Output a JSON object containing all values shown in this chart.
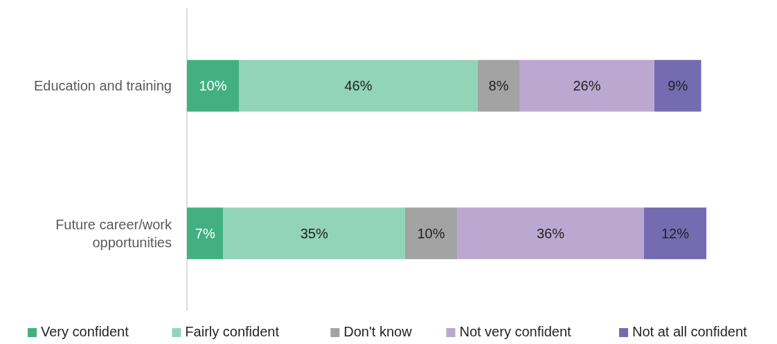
{
  "chart_data": {
    "type": "bar",
    "orientation": "horizontal",
    "stacked": true,
    "legend": "bottom",
    "categories": [
      "Education and training",
      "Future career/work opportunities"
    ],
    "series": [
      {
        "name": "Very confident",
        "color": "#43b081",
        "values": [
          10,
          7
        ],
        "value_labels": [
          "10%",
          "7%"
        ]
      },
      {
        "name": "Fairly confident",
        "color": "#92d4b8",
        "values": [
          46,
          35
        ],
        "value_labels": [
          "46%",
          "35%"
        ]
      },
      {
        "name": "Don't know",
        "color": "#a3a3a3",
        "values": [
          8,
          10
        ],
        "value_labels": [
          "8%",
          "10%"
        ]
      },
      {
        "name": "Not very confident",
        "color": "#bba8d1",
        "values": [
          26,
          36
        ],
        "value_labels": [
          "26%",
          "36%"
        ]
      },
      {
        "name": "Not at all confident",
        "color": "#756bb0",
        "values": [
          9,
          12
        ],
        "value_labels": [
          "9%",
          "12%"
        ]
      }
    ]
  }
}
